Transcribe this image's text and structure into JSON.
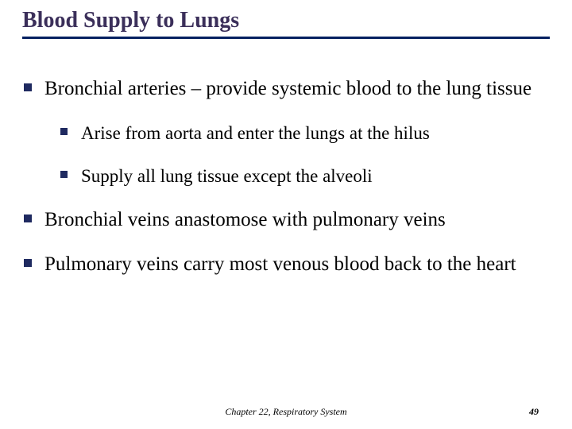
{
  "colors": {
    "title_text": "#3b2f5a",
    "rule": "#002060",
    "bullet": "#1f2a60",
    "body_text": "#000000",
    "background": "#ffffff"
  },
  "typography": {
    "title_fontsize": 28,
    "lvl1_fontsize": 25,
    "lvl2_fontsize": 23,
    "footer_fontsize": 12,
    "font_family": "Times New Roman",
    "title_weight": "bold"
  },
  "title": "Blood Supply to Lungs",
  "bullets": [
    {
      "text": "Bronchial arteries – provide systemic blood to the lung tissue",
      "children": [
        {
          "text": "Arise from aorta and enter the lungs at the hilus"
        },
        {
          "text": "Supply all lung tissue except the alveoli"
        }
      ]
    },
    {
      "text": "Bronchial veins anastomose with pulmonary veins"
    },
    {
      "text": "Pulmonary veins carry most venous blood back to the heart"
    }
  ],
  "footer": "Chapter 22, Respiratory System",
  "page_number": "49"
}
